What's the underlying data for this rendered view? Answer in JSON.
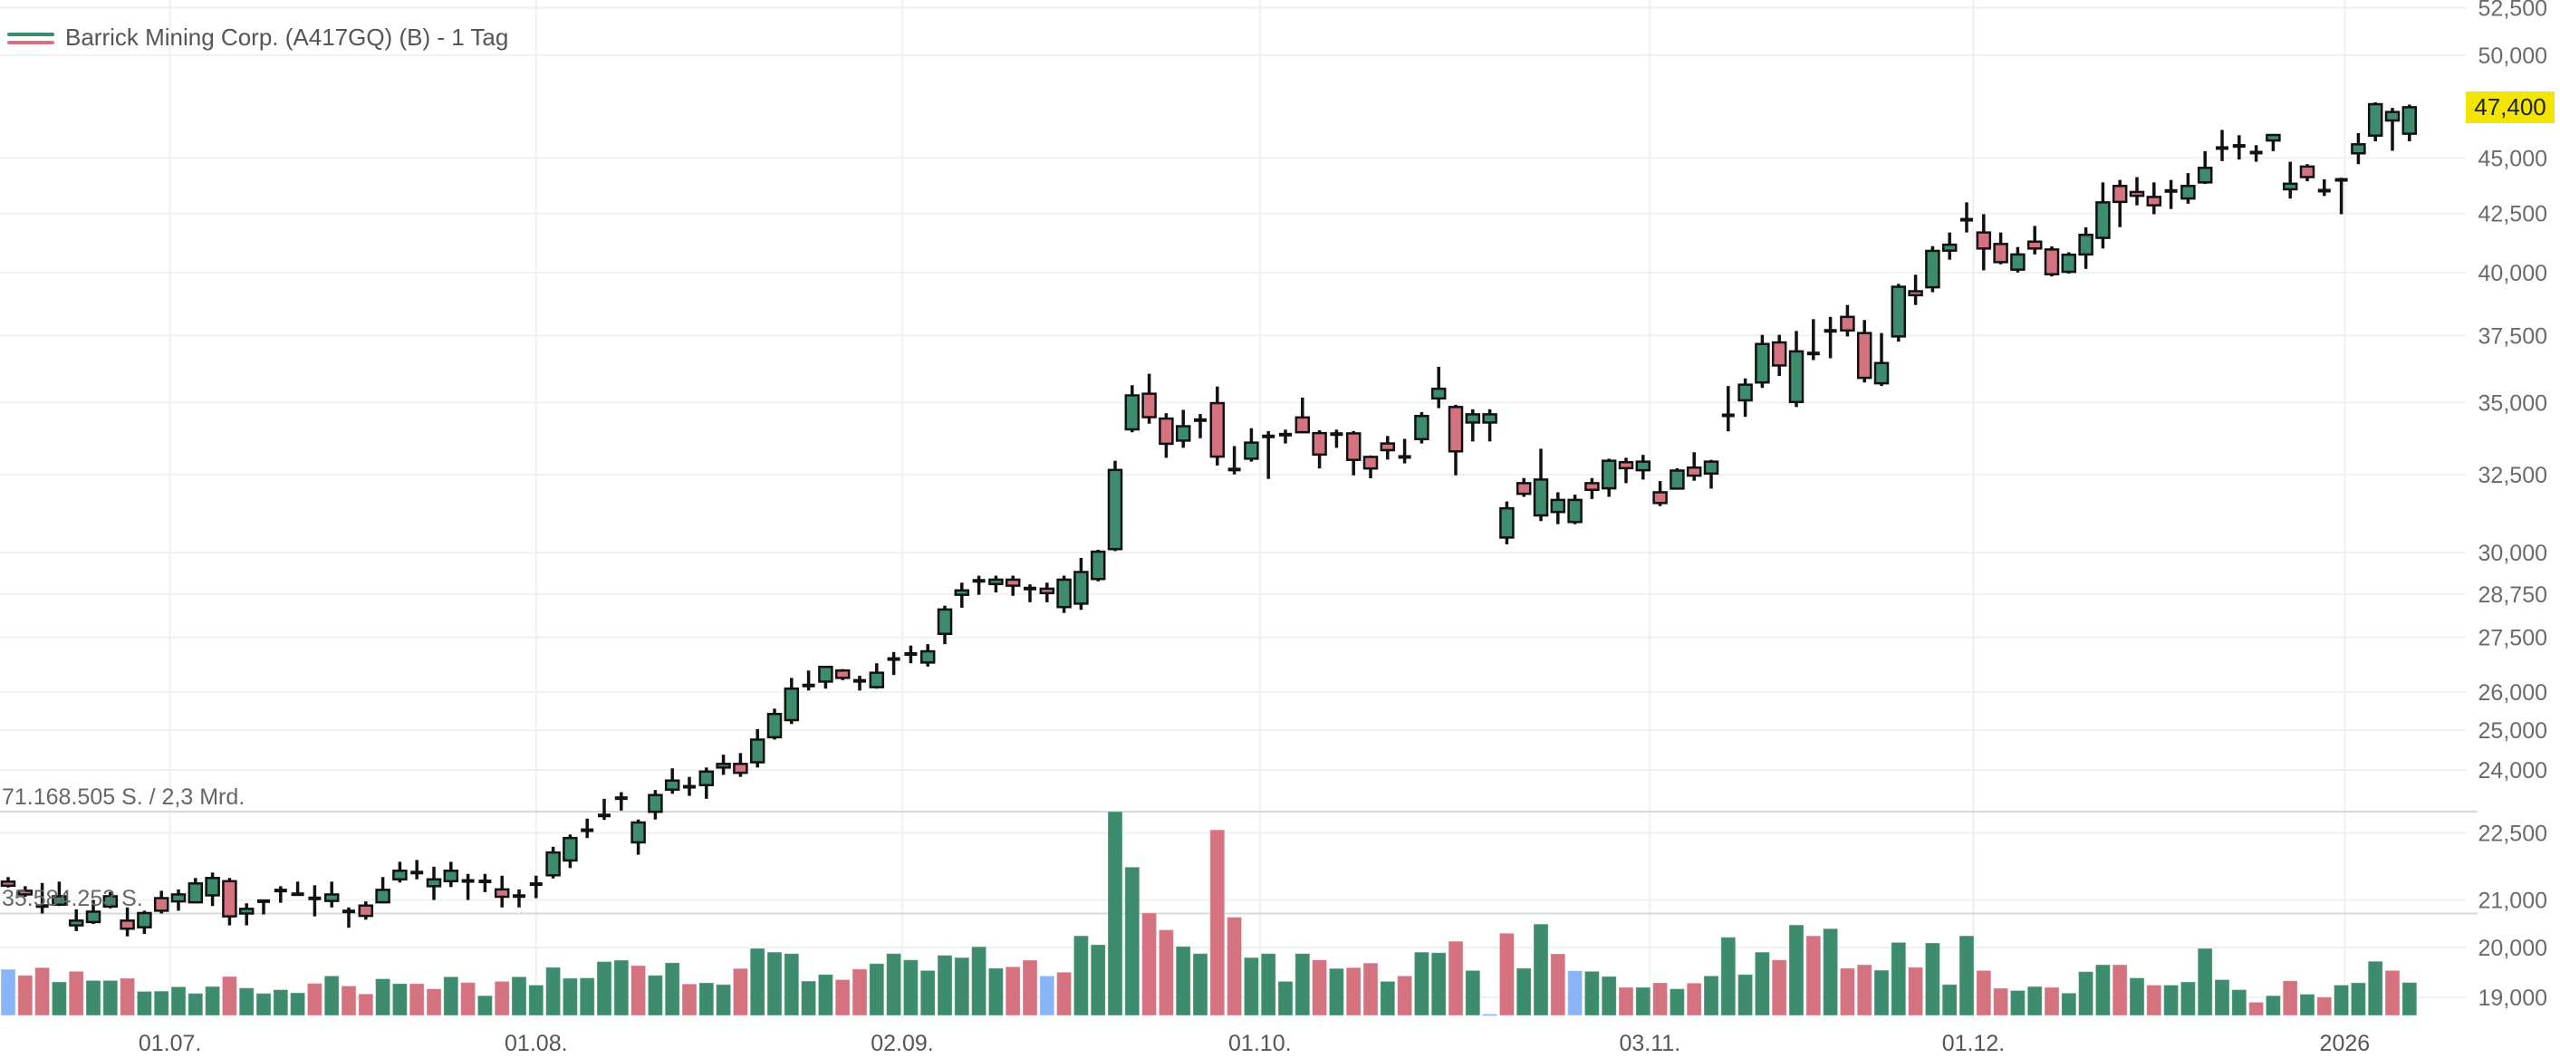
{
  "legend": {
    "title": "Barrick Mining Corp. (A417GQ) (B) - 1 Tag"
  },
  "volume_pane": {
    "max_label": "71.168.505 S. / 2,3 Mrd.",
    "mid_label": "35.584.253 S."
  },
  "last_price": {
    "label": "47,400",
    "value": 47400,
    "color": "#f2e600"
  },
  "colors": {
    "up": "#3d8c6e",
    "down": "#d4737f",
    "neutral": "#8ab4f8",
    "wick": "#111111",
    "grid": "#eef0f2",
    "pane_line": "#d5d8dc"
  },
  "chart_data": {
    "type": "candlestick",
    "title": "Barrick Mining Corp. (A417GQ) (B) - 1 Tag",
    "yscale": "log",
    "ylim": [
      18700,
      53000
    ],
    "y_ticks": [
      52500,
      50000,
      45000,
      42500,
      40000,
      37500,
      35000,
      32500,
      30000,
      28750,
      27500,
      26000,
      25000,
      24000,
      22500,
      21000,
      20000,
      19000
    ],
    "y_tick_labels": [
      "52,500",
      "50,000",
      "45,000",
      "42,500",
      "40,000",
      "37,500",
      "35,000",
      "32,500",
      "30,000",
      "28,750",
      "27,500",
      "26,000",
      "25,000",
      "24,000",
      "22,500",
      "21,000",
      "20,000",
      "19,000"
    ],
    "x_labels": [
      {
        "label": "01.07.",
        "index": 9.5
      },
      {
        "label": "01.08.",
        "index": 31
      },
      {
        "label": "02.09.",
        "index": 52.5
      },
      {
        "label": "01.10.",
        "index": 73.5
      },
      {
        "label": "03.11.",
        "index": 96.4
      },
      {
        "label": "01.12.",
        "index": 115.4
      },
      {
        "label": "2026",
        "index": 137.2
      }
    ],
    "ohlc_fields": [
      "open",
      "high",
      "low",
      "close"
    ],
    "ohlc": [
      [
        21400,
        21500,
        21270,
        21310
      ],
      [
        21200,
        21300,
        21070,
        21120
      ],
      [
        20880,
        21370,
        20710,
        20860
      ],
      [
        20900,
        21400,
        20870,
        21080
      ],
      [
        20460,
        20800,
        20340,
        20560
      ],
      [
        20530,
        21000,
        20490,
        20750
      ],
      [
        20860,
        21170,
        20820,
        21080
      ],
      [
        20560,
        20840,
        20230,
        20390
      ],
      [
        20420,
        20770,
        20280,
        20720
      ],
      [
        21040,
        21200,
        20710,
        20770
      ],
      [
        20970,
        21230,
        20770,
        21120
      ],
      [
        20950,
        21480,
        20930,
        21360
      ],
      [
        21100,
        21600,
        20870,
        21480
      ],
      [
        21410,
        21480,
        20460,
        20650
      ],
      [
        20710,
        20930,
        20460,
        20810
      ],
      [
        20980,
        21000,
        20690,
        20970
      ],
      [
        21200,
        21300,
        20940,
        21210
      ],
      [
        21120,
        21400,
        21100,
        21130
      ],
      [
        21070,
        21320,
        20650,
        21000
      ],
      [
        20980,
        21400,
        20840,
        21120
      ],
      [
        20760,
        20840,
        20410,
        20750
      ],
      [
        20880,
        20970,
        20580,
        20660
      ],
      [
        20950,
        21500,
        20930,
        21220
      ],
      [
        21450,
        21840,
        21380,
        21640
      ],
      [
        21630,
        21880,
        21450,
        21570
      ],
      [
        21300,
        21730,
        21000,
        21450
      ],
      [
        21410,
        21840,
        21280,
        21640
      ],
      [
        21450,
        21570,
        21000,
        21380
      ],
      [
        21400,
        21570,
        21170,
        21410
      ],
      [
        21230,
        21530,
        20840,
        21070
      ],
      [
        21120,
        21230,
        20840,
        21050
      ],
      [
        21370,
        21530,
        21040,
        21320
      ],
      [
        21540,
        22180,
        21470,
        22050
      ],
      [
        21870,
        22460,
        21700,
        22380
      ],
      [
        22520,
        22830,
        22380,
        22600
      ],
      [
        22910,
        23300,
        22800,
        22900
      ],
      [
        23310,
        23460,
        23020,
        23320
      ],
      [
        22280,
        22810,
        22000,
        22740
      ],
      [
        22990,
        23510,
        22810,
        23390
      ],
      [
        23520,
        24040,
        23420,
        23740
      ],
      [
        23630,
        23830,
        23370,
        23550
      ],
      [
        23630,
        24060,
        23300,
        23960
      ],
      [
        24060,
        24380,
        23880,
        24150
      ],
      [
        24150,
        24420,
        23830,
        23930
      ],
      [
        24190,
        25030,
        24060,
        24760
      ],
      [
        24820,
        25560,
        24760,
        25420
      ],
      [
        25260,
        26380,
        25160,
        26090
      ],
      [
        26170,
        26580,
        26040,
        26180
      ],
      [
        26280,
        26700,
        26090,
        26680
      ],
      [
        26580,
        26620,
        26320,
        26380
      ],
      [
        26330,
        26440,
        26040,
        26270
      ],
      [
        26130,
        26780,
        26090,
        26520
      ],
      [
        26890,
        27090,
        26460,
        26900
      ],
      [
        27030,
        27270,
        26780,
        27040
      ],
      [
        26800,
        27310,
        26690,
        27110
      ],
      [
        27600,
        28410,
        27310,
        28300
      ],
      [
        28730,
        29090,
        28350,
        28860
      ],
      [
        29140,
        29300,
        28730,
        29150
      ],
      [
        29050,
        29300,
        28800,
        29180
      ],
      [
        29180,
        29300,
        28700,
        29000
      ],
      [
        28910,
        29040,
        28510,
        28920
      ],
      [
        28910,
        29090,
        28510,
        28780
      ],
      [
        28370,
        29300,
        28200,
        29180
      ],
      [
        28470,
        29840,
        28290,
        29410
      ],
      [
        29200,
        30090,
        29130,
        30030
      ],
      [
        30110,
        32970,
        30050,
        32660
      ],
      [
        34050,
        35630,
        33950,
        35260
      ],
      [
        35320,
        36050,
        34250,
        34480
      ],
      [
        34430,
        34620,
        33070,
        33550
      ],
      [
        33660,
        34740,
        33410,
        34160
      ],
      [
        34370,
        34590,
        33740,
        34380
      ],
      [
        34980,
        35580,
        32810,
        33110
      ],
      [
        32680,
        33470,
        32510,
        32670
      ],
      [
        33040,
        34090,
        32940,
        33590
      ],
      [
        33800,
        33990,
        32360,
        33810
      ],
      [
        33860,
        34040,
        33560,
        33870
      ],
      [
        34470,
        35180,
        33910,
        33950
      ],
      [
        33920,
        34020,
        32710,
        33180
      ],
      [
        33880,
        34040,
        33410,
        33890
      ],
      [
        33910,
        33990,
        32480,
        33000
      ],
      [
        33100,
        33150,
        32380,
        32710
      ],
      [
        33560,
        33820,
        33010,
        33330
      ],
      [
        33050,
        33720,
        32880,
        33150
      ],
      [
        33710,
        34660,
        33560,
        34520
      ],
      [
        35150,
        36310,
        34800,
        35500
      ],
      [
        34840,
        34920,
        32480,
        33290
      ],
      [
        34290,
        34760,
        33630,
        34580
      ],
      [
        34290,
        34760,
        33630,
        34580
      ],
      [
        30470,
        31620,
        30260,
        31400
      ],
      [
        32220,
        32390,
        31770,
        31870
      ],
      [
        31170,
        33380,
        30990,
        32340
      ],
      [
        31280,
        31920,
        30890,
        31670
      ],
      [
        30960,
        31840,
        30890,
        31670
      ],
      [
        32220,
        32390,
        31700,
        32000
      ],
      [
        32050,
        33040,
        31770,
        32970
      ],
      [
        32920,
        33070,
        32220,
        32720
      ],
      [
        32650,
        33170,
        32340,
        32940
      ],
      [
        31920,
        32290,
        31470,
        31570
      ],
      [
        32040,
        32720,
        32020,
        32640
      ],
      [
        32740,
        33260,
        32300,
        32470
      ],
      [
        32540,
        33000,
        32040,
        32940
      ],
      [
        34540,
        35600,
        33980,
        34550
      ],
      [
        35080,
        35880,
        34490,
        35650
      ],
      [
        35730,
        37520,
        35530,
        37170
      ],
      [
        37230,
        37520,
        35970,
        36360
      ],
      [
        35020,
        37670,
        34840,
        36890
      ],
      [
        36800,
        38130,
        36560,
        36820
      ],
      [
        37670,
        38220,
        36630,
        37680
      ],
      [
        38220,
        38690,
        37460,
        37690
      ],
      [
        37590,
        38100,
        35730,
        35900
      ],
      [
        35700,
        37590,
        35600,
        36450
      ],
      [
        37460,
        39540,
        37260,
        39420
      ],
      [
        39240,
        39910,
        38690,
        39080
      ],
      [
        39400,
        41100,
        39200,
        40900
      ],
      [
        40910,
        41680,
        40530,
        41160
      ],
      [
        42220,
        42990,
        41680,
        42240
      ],
      [
        41680,
        42470,
        40090,
        41000
      ],
      [
        41190,
        41680,
        40340,
        40430
      ],
      [
        40120,
        41060,
        40000,
        40750
      ],
      [
        41290,
        41960,
        40750,
        41000
      ],
      [
        40960,
        41090,
        39840,
        39930
      ],
      [
        40030,
        40840,
        39960,
        40740
      ],
      [
        40750,
        41900,
        40150,
        41580
      ],
      [
        41450,
        43880,
        41000,
        42990
      ],
      [
        43720,
        43990,
        41910,
        43010
      ],
      [
        43450,
        44120,
        42860,
        43280
      ],
      [
        43230,
        43880,
        42470,
        42860
      ],
      [
        43490,
        43990,
        42700,
        43500
      ],
      [
        43160,
        44300,
        42930,
        43720
      ],
      [
        43880,
        45310,
        43810,
        44540
      ],
      [
        45450,
        46310,
        44850,
        45460
      ],
      [
        45550,
        46060,
        44920,
        45560
      ],
      [
        45240,
        45590,
        44820,
        45250
      ],
      [
        45810,
        46090,
        45310,
        46070
      ],
      [
        43570,
        44820,
        43160,
        43820
      ],
      [
        44600,
        44710,
        43930,
        44120
      ],
      [
        43590,
        44020,
        43270,
        43430
      ],
      [
        43990,
        44090,
        42470,
        44000
      ],
      [
        45210,
        46160,
        44710,
        45630
      ],
      [
        46040,
        47640,
        45770,
        47550
      ],
      [
        46760,
        47370,
        45330,
        47170
      ],
      [
        46130,
        47530,
        45770,
        47400
      ]
    ],
    "volume_unit": "million shares",
    "volume_max": 71.168505,
    "volume": [
      16.1,
      14.0,
      16.7,
      11.7,
      15.4,
      12.2,
      12.2,
      13.0,
      8.4,
      8.5,
      10.0,
      7.7,
      10.1,
      13.6,
      9.6,
      7.7,
      9.0,
      7.9,
      11.2,
      13.8,
      10.3,
      7.5,
      12.8,
      11.1,
      11.1,
      9.3,
      13.5,
      11.5,
      6.9,
      11.9,
      13.5,
      10.6,
      16.8,
      13.0,
      13.1,
      18.8,
      19.3,
      17.4,
      14.0,
      18.4,
      11.0,
      11.4,
      10.8,
      16.4,
      23.4,
      22.1,
      21.6,
      12.0,
      14.3,
      12.5,
      16.2,
      18.1,
      21.6,
      19.4,
      15.7,
      21.0,
      20.2,
      24.0,
      16.5,
      17.0,
      19.3,
      13.8,
      15.1,
      27.8,
      24.7,
      71.17,
      51.8,
      35.8,
      29.9,
      24.1,
      21.6,
      64.8,
      34.3,
      20.2,
      21.6,
      11.9,
      21.6,
      19.4,
      16.4,
      16.7,
      18.3,
      11.9,
      13.8,
      22.1,
      21.9,
      25.9,
      15.7,
      0.5,
      28.7,
      16.5,
      31.9,
      21.5,
      15.6,
      15.4,
      13.6,
      9.8,
      9.8,
      11.4,
      9.3,
      11.3,
      13.8,
      27.3,
      14.3,
      22.1,
      19.4,
      31.6,
      27.8,
      30.3,
      16.5,
      17.7,
      15.8,
      25.5,
      16.8,
      25.3,
      10.8,
      27.8,
      15.7,
      9.5,
      8.7,
      10.1,
      9.8,
      7.8,
      15.3,
      17.7,
      17.7,
      13.1,
      10.6,
      10.6,
      11.7,
      23.4,
      12.5,
      9.0,
      4.6,
      6.9,
      12.1,
      7.4,
      6.4,
      10.6,
      11.4,
      18.9,
      15.7,
      11.5
    ],
    "volume_direction": "bddudtudduuuuuduuuuduudduduududuu",
    "volume_direction_full": [
      "n",
      "d",
      "d",
      "u",
      "d",
      "u",
      "u",
      "d",
      "u",
      "u",
      "u",
      "u",
      "u",
      "d",
      "u",
      "u",
      "u",
      "u",
      "d",
      "u",
      "d",
      "d",
      "u",
      "u",
      "d",
      "d",
      "u",
      "d",
      "u",
      "d",
      "u",
      "u",
      "u",
      "u",
      "u",
      "u",
      "u",
      "d",
      "u",
      "u",
      "d",
      "u",
      "u",
      "d",
      "u",
      "u",
      "u",
      "u",
      "u",
      "d",
      "d",
      "u",
      "u",
      "u",
      "u",
      "u",
      "u",
      "u",
      "u",
      "d",
      "d",
      "n",
      "d",
      "u",
      "u",
      "u",
      "u",
      "d",
      "d",
      "u",
      "u",
      "d",
      "d",
      "u",
      "u",
      "u",
      "u",
      "d",
      "u",
      "d",
      "d",
      "u",
      "d",
      "u",
      "u",
      "d",
      "u",
      "n",
      "d",
      "u",
      "u",
      "d",
      "n",
      "u",
      "u",
      "d",
      "u",
      "d",
      "u",
      "d",
      "u",
      "u",
      "u",
      "u",
      "d",
      "u",
      "d",
      "u",
      "d",
      "d",
      "u",
      "u",
      "d",
      "u",
      "u",
      "u",
      "d",
      "d",
      "u",
      "u",
      "d",
      "u",
      "u",
      "u",
      "d",
      "u",
      "d",
      "u",
      "u",
      "u",
      "u",
      "u",
      "d",
      "u",
      "d",
      "u",
      "d",
      "u",
      "u",
      "u",
      "d",
      "u"
    ]
  }
}
